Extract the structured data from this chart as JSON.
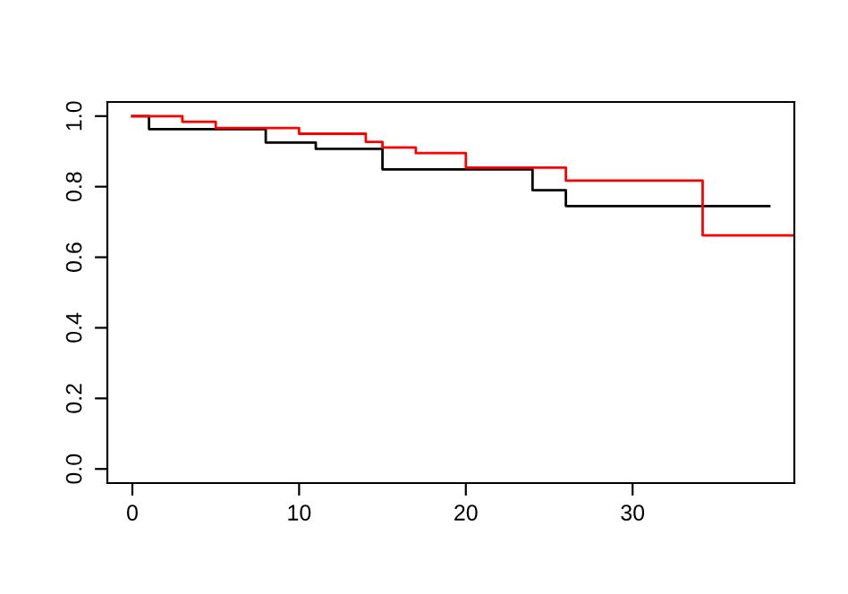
{
  "chart_data": {
    "type": "step",
    "series": [
      {
        "color": "#000000",
        "x": [
          0,
          1,
          8,
          11,
          15,
          24,
          26,
          38.2
        ],
        "values": [
          1.0,
          0.963,
          0.925,
          0.907,
          0.849,
          0.79,
          0.745,
          0.745
        ]
      },
      {
        "color": "#ff0000",
        "x": [
          0,
          3,
          5,
          10,
          14,
          15,
          17,
          20,
          26,
          34.2,
          39.7
        ],
        "values": [
          1.0,
          0.984,
          0.966,
          0.95,
          0.927,
          0.911,
          0.895,
          0.854,
          0.817,
          0.662,
          0.662
        ]
      }
    ],
    "xlim": [
      -1.5,
      39.7
    ],
    "ylim": [
      -0.04,
      1.04
    ],
    "xticks": [
      0,
      10,
      20,
      30
    ],
    "yticks": [
      {
        "value": 0,
        "label": "0.0"
      },
      {
        "value": 0.2,
        "label": "0.2"
      },
      {
        "value": 0.4,
        "label": "0.4"
      },
      {
        "value": 0.6,
        "label": "0.6"
      },
      {
        "value": 0.8,
        "label": "0.8"
      },
      {
        "value": 1,
        "label": "1.0"
      }
    ],
    "grid": false,
    "legend": false
  }
}
